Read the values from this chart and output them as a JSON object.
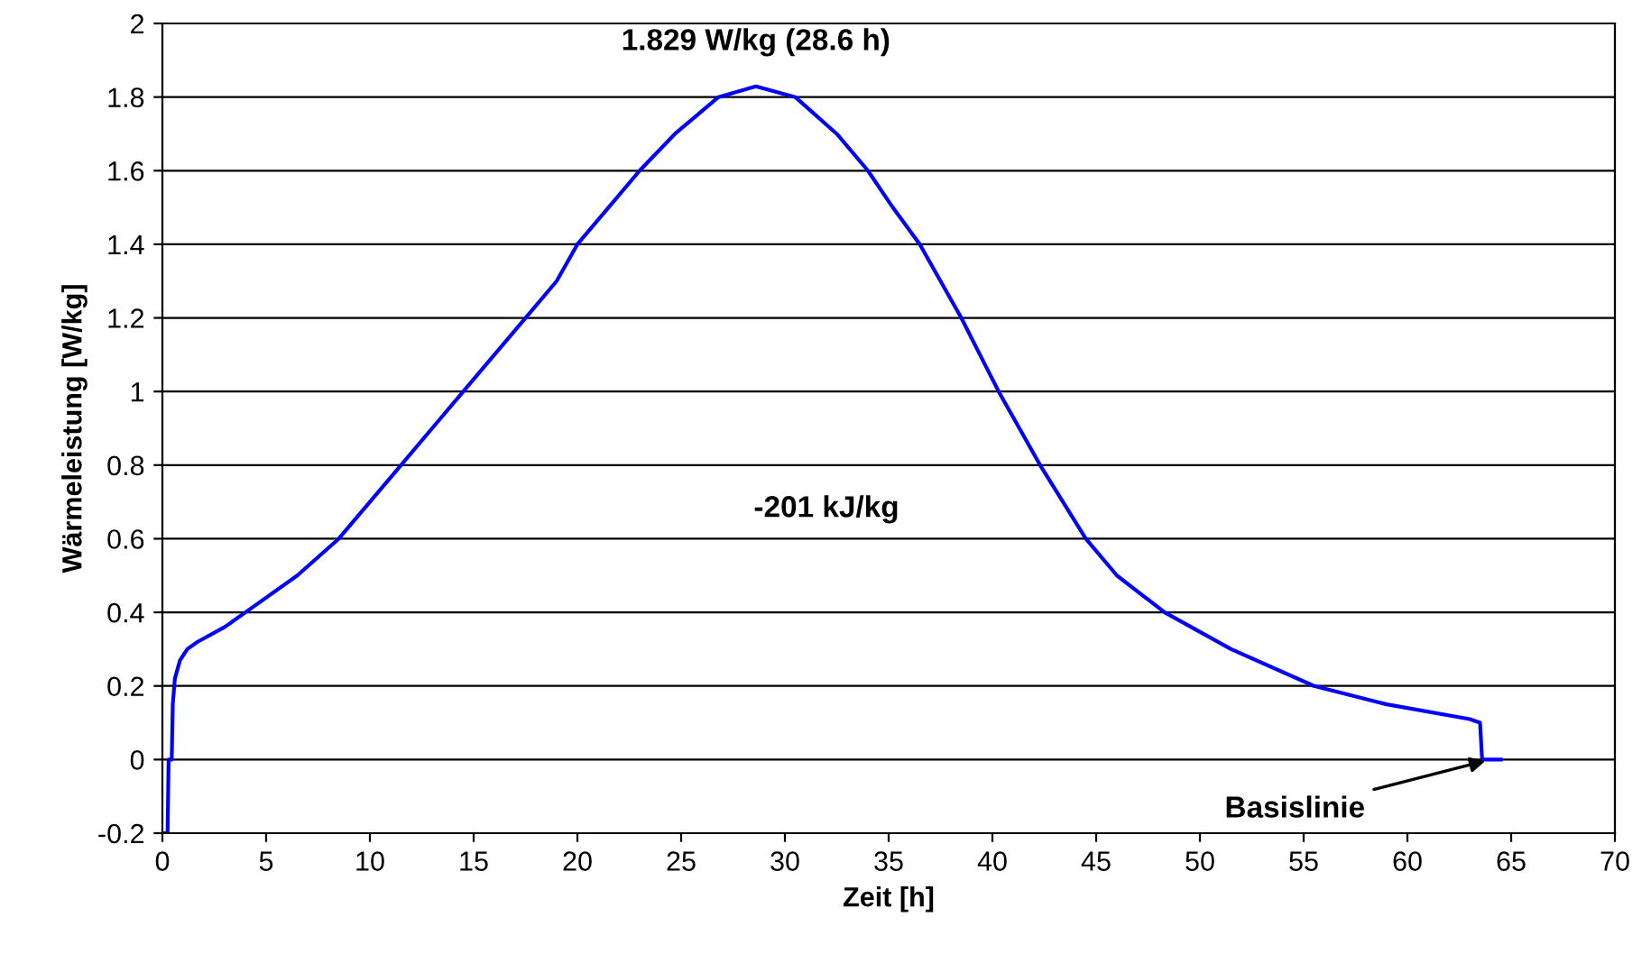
{
  "chart_data": {
    "type": "line",
    "xlabel": "Zeit [h]",
    "ylabel": "Wärmeleistung [W/kg]",
    "xlim": [
      0,
      70
    ],
    "ylim": [
      -0.2,
      2
    ],
    "xticks": [
      0,
      5,
      10,
      15,
      20,
      25,
      30,
      35,
      40,
      45,
      50,
      55,
      60,
      65,
      70
    ],
    "yticks": [
      -0.2,
      0,
      0.2,
      0.4,
      0.6,
      0.8,
      1,
      1.2,
      1.4,
      1.6,
      1.8,
      2
    ],
    "grid": "y",
    "marker": "none",
    "line_style": "solid",
    "series": [
      {
        "color": "#0000ff",
        "x": [
          0,
          0.25,
          0.3,
          0.45,
          0.5,
          0.6,
          0.85,
          1.2,
          1.7,
          3,
          4,
          6.5,
          8.5,
          10,
          11.5,
          13,
          14.5,
          16,
          17.5,
          19,
          20,
          21.5,
          23,
          24.7,
          26.8,
          28.6,
          30.5,
          32.5,
          34,
          35.2,
          36.5,
          37.5,
          38.5,
          39.4,
          40.3,
          41.3,
          42.3,
          43.4,
          44.5,
          46,
          48.3,
          51.5,
          55.5,
          59,
          63,
          63.5,
          63.6,
          64.5
        ],
        "values": [
          -0.2,
          -0.2,
          0,
          0,
          0.15,
          0.22,
          0.27,
          0.3,
          0.32,
          0.36,
          0.4,
          0.5,
          0.6,
          0.7,
          0.8,
          0.9,
          1.0,
          1.1,
          1.2,
          1.3,
          1.4,
          1.5,
          1.6,
          1.7,
          1.8,
          1.829,
          1.8,
          1.7,
          1.6,
          1.5,
          1.4,
          1.3,
          1.2,
          1.1,
          1.0,
          0.9,
          0.8,
          0.7,
          0.6,
          0.5,
          0.4,
          0.3,
          0.2,
          0.15,
          0.11,
          0.1,
          0,
          0
        ]
      }
    ],
    "annotations": [
      {
        "text": "1.829 W/kg (28.6 h)",
        "x": 28.6,
        "y": 1.829
      },
      "-201 kJ/kg",
      {
        "text": "Basislinie",
        "x": 64,
        "y": 0
      }
    ]
  }
}
